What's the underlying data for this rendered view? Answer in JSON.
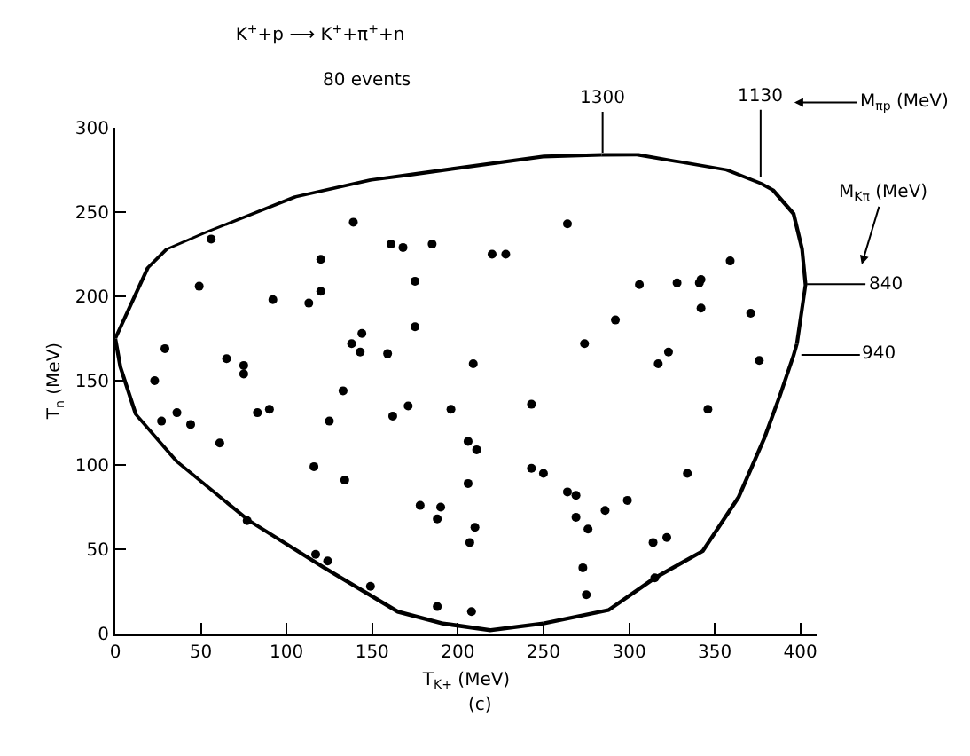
{
  "chart_data": {
    "type": "scatter",
    "title": "K$^{+}$+p ⟶ K$^{+}$+π$^{+}$+n",
    "subtitle": "80 events",
    "xlabel": "T$_{K+}$ (MeV)",
    "ylabel": "T$_{n}$ (MeV)",
    "xlim": [
      0,
      410
    ],
    "ylim": [
      0,
      300
    ],
    "xticks": [
      0,
      50,
      100,
      150,
      200,
      250,
      300,
      350,
      400
    ],
    "yticks": [
      0,
      50,
      100,
      150,
      200,
      250,
      300
    ],
    "grid": false,
    "marker": "circle",
    "annotations": [
      "1300",
      "1130",
      "840",
      "940",
      "M$_{πp}$ (MeV)",
      "M$_{Kπ}$ (MeV)",
      "(c)"
    ],
    "series": [
      {
        "type": "scatter",
        "color": "#000000",
        "x": [
          56,
          49,
          29,
          23,
          27,
          36,
          44,
          61,
          65,
          75,
          75,
          77,
          83,
          90,
          92,
          113,
          120,
          120,
          116,
          117,
          124,
          125,
          133,
          134,
          138,
          144,
          143,
          139,
          149,
          159,
          161,
          168,
          162,
          171,
          185,
          175,
          175,
          209,
          196,
          206,
          211,
          206,
          178,
          190,
          188,
          210,
          207,
          188,
          208,
          220,
          228,
          264,
          243,
          243,
          250,
          264,
          269,
          269,
          276,
          273,
          275,
          286,
          299,
          274,
          292,
          306,
          328,
          341,
          342,
          342,
          323,
          317,
          346,
          334,
          314,
          322,
          315,
          359,
          371,
          376
        ],
        "values": [
          234,
          206,
          169,
          150,
          126,
          131,
          124,
          113,
          163,
          159,
          154,
          67,
          131,
          133,
          198,
          196,
          203,
          222,
          99,
          47,
          43,
          126,
          144,
          91,
          172,
          178,
          167,
          244,
          28,
          166,
          231,
          229,
          129,
          135,
          231,
          209,
          182,
          160,
          133,
          114,
          109,
          89,
          76,
          75,
          68,
          63,
          54,
          16,
          13,
          225,
          225,
          243,
          136,
          98,
          95,
          84,
          82,
          69,
          62,
          39,
          23,
          73,
          79,
          172,
          186,
          207,
          208,
          208,
          210,
          193,
          167,
          160,
          133,
          95,
          54,
          57,
          33,
          221,
          190,
          162
        ]
      }
    ]
  }
}
